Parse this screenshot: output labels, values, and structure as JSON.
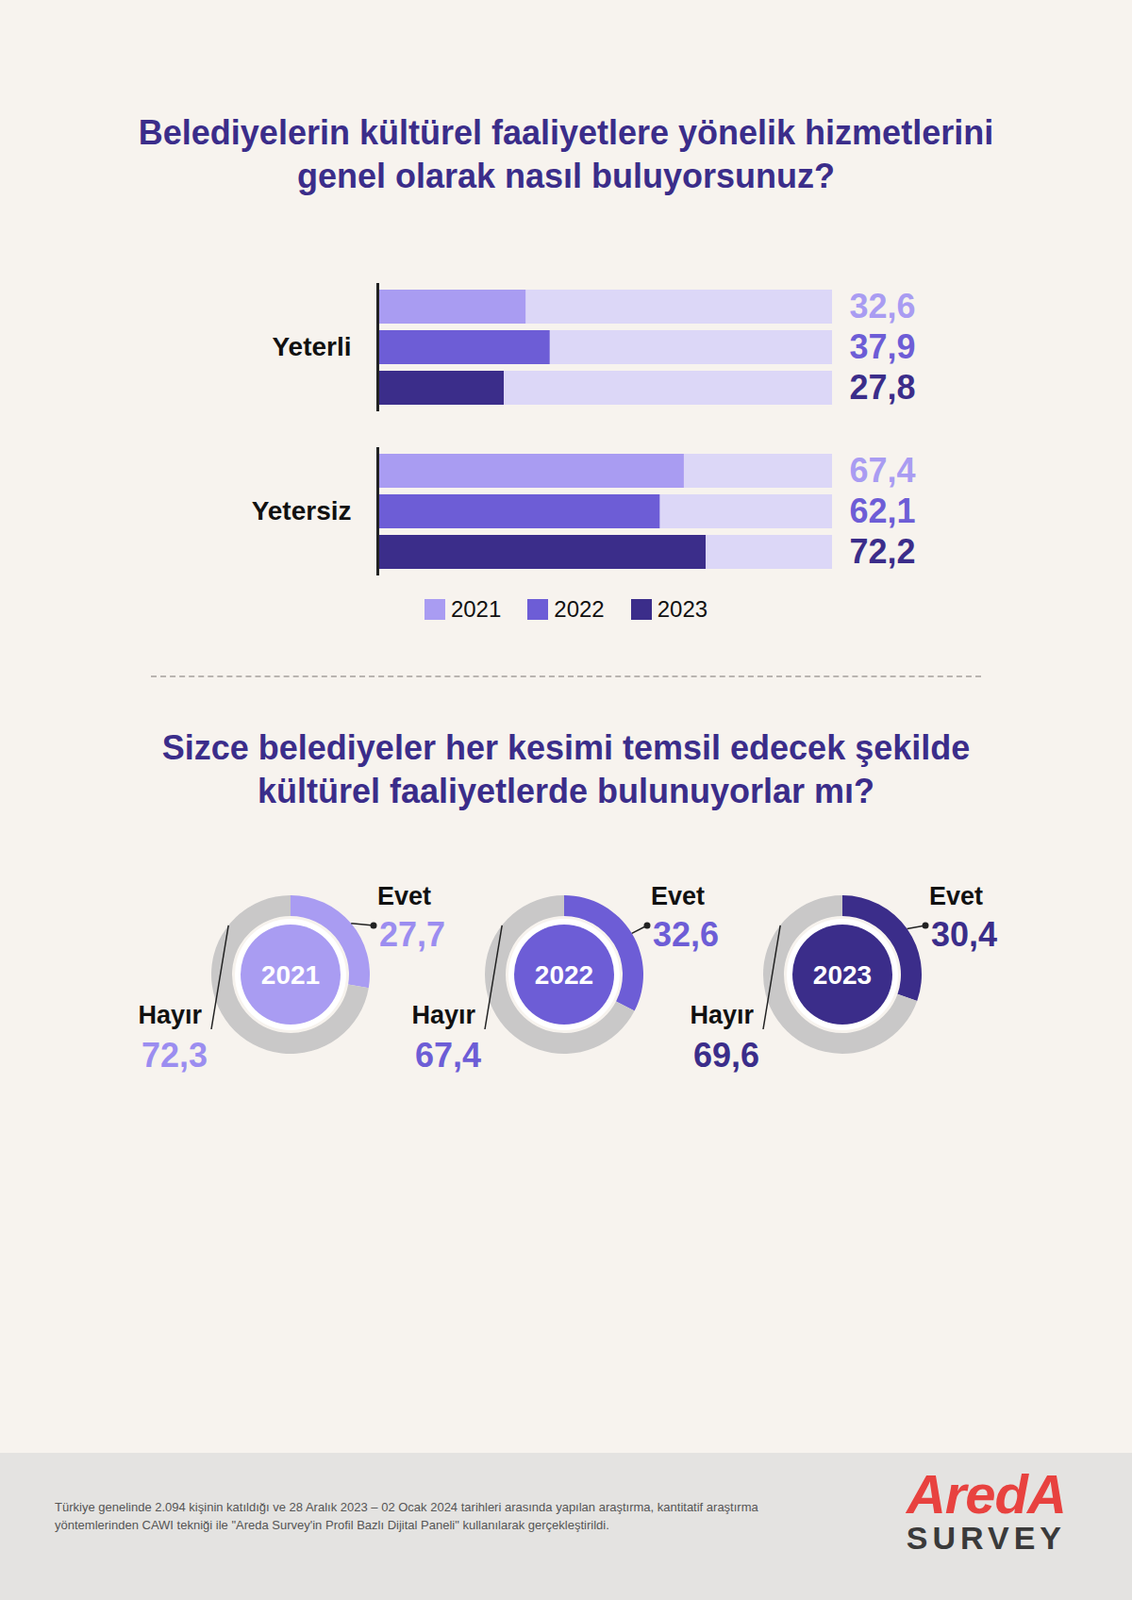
{
  "chart_data": [
    {
      "type": "bar",
      "orientation": "horizontal",
      "title": "Belediyelerin kültürel faaliyetlere yönelik hizmetlerini genel olarak nasıl buluyorsunuz?",
      "categories": [
        "Yeterli",
        "Yetersiz"
      ],
      "series": [
        {
          "name": "2021",
          "color": "#a99cf2",
          "values": [
            32.6,
            67.4
          ],
          "value_labels": [
            "32,6",
            "67,4"
          ]
        },
        {
          "name": "2022",
          "color": "#6d5dd6",
          "values": [
            37.9,
            62.1
          ],
          "value_labels": [
            "37,9",
            "62,1"
          ]
        },
        {
          "name": "2023",
          "color": "#3b2d8a",
          "values": [
            27.8,
            72.2
          ],
          "value_labels": [
            "27,8",
            "72,2"
          ]
        }
      ],
      "xlim": [
        0,
        100
      ],
      "tick_labels": "y",
      "data_labels": true,
      "legend": "bottom"
    },
    {
      "type": "pie",
      "title": "Sizce belediyeler her kesimi temsil edecek şekilde kültürel faaliyetlerde bulunuyorlar mı?",
      "categories": [
        "Evet",
        "Hayır"
      ],
      "series": [
        {
          "name": "2021",
          "colors": [
            "#a99cf2",
            "#c9c8c8"
          ],
          "values": [
            27.7,
            72.3
          ],
          "value_labels": [
            "27,7",
            "72,3"
          ]
        },
        {
          "name": "2022",
          "colors": [
            "#6d5dd6",
            "#c9c8c8"
          ],
          "values": [
            32.6,
            67.4
          ],
          "value_labels": [
            "32,6",
            "67,4"
          ]
        },
        {
          "name": "2023",
          "colors": [
            "#3b2d8a",
            "#c9c8c8"
          ],
          "values": [
            30.4,
            69.6
          ],
          "value_labels": [
            "30,4",
            "69,6"
          ]
        }
      ],
      "data_labels": true
    }
  ],
  "footer": {
    "note": "Türkiye genelinde 2.094 kişinin katıldığı ve 28 Aralık 2023 – 02 Ocak 2024 tarihleri arasında yapılan araştırma, kantitatif araştırma yöntemlerinden CAWI tekniği ile \"Areda Survey'in Profil Bazlı Dijital Paneli\" kullanılarak gerçekleştirildi.",
    "logo": "AredA",
    "logo_sub": "SURVEY"
  }
}
